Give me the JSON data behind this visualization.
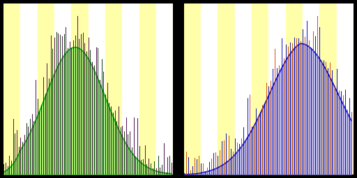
{
  "background_color": "#000000",
  "n_female": 90,
  "n_male": 80,
  "female_fill_color": "#66dd44",
  "female_fill_alpha": 0.6,
  "female_line_color": "#00aa00",
  "female_spike_color1": "#003300",
  "female_spike_color2": "#440044",
  "male_fill_color": "#8888dd",
  "male_fill_alpha": 0.6,
  "male_line_color": "#0000cc",
  "male_spike_color1": "#0000bb",
  "male_spike_color2": "#cc4400",
  "stripe_color1": "#ffffaa",
  "stripe_color2": "#ffffff",
  "n_stripes": 10
}
